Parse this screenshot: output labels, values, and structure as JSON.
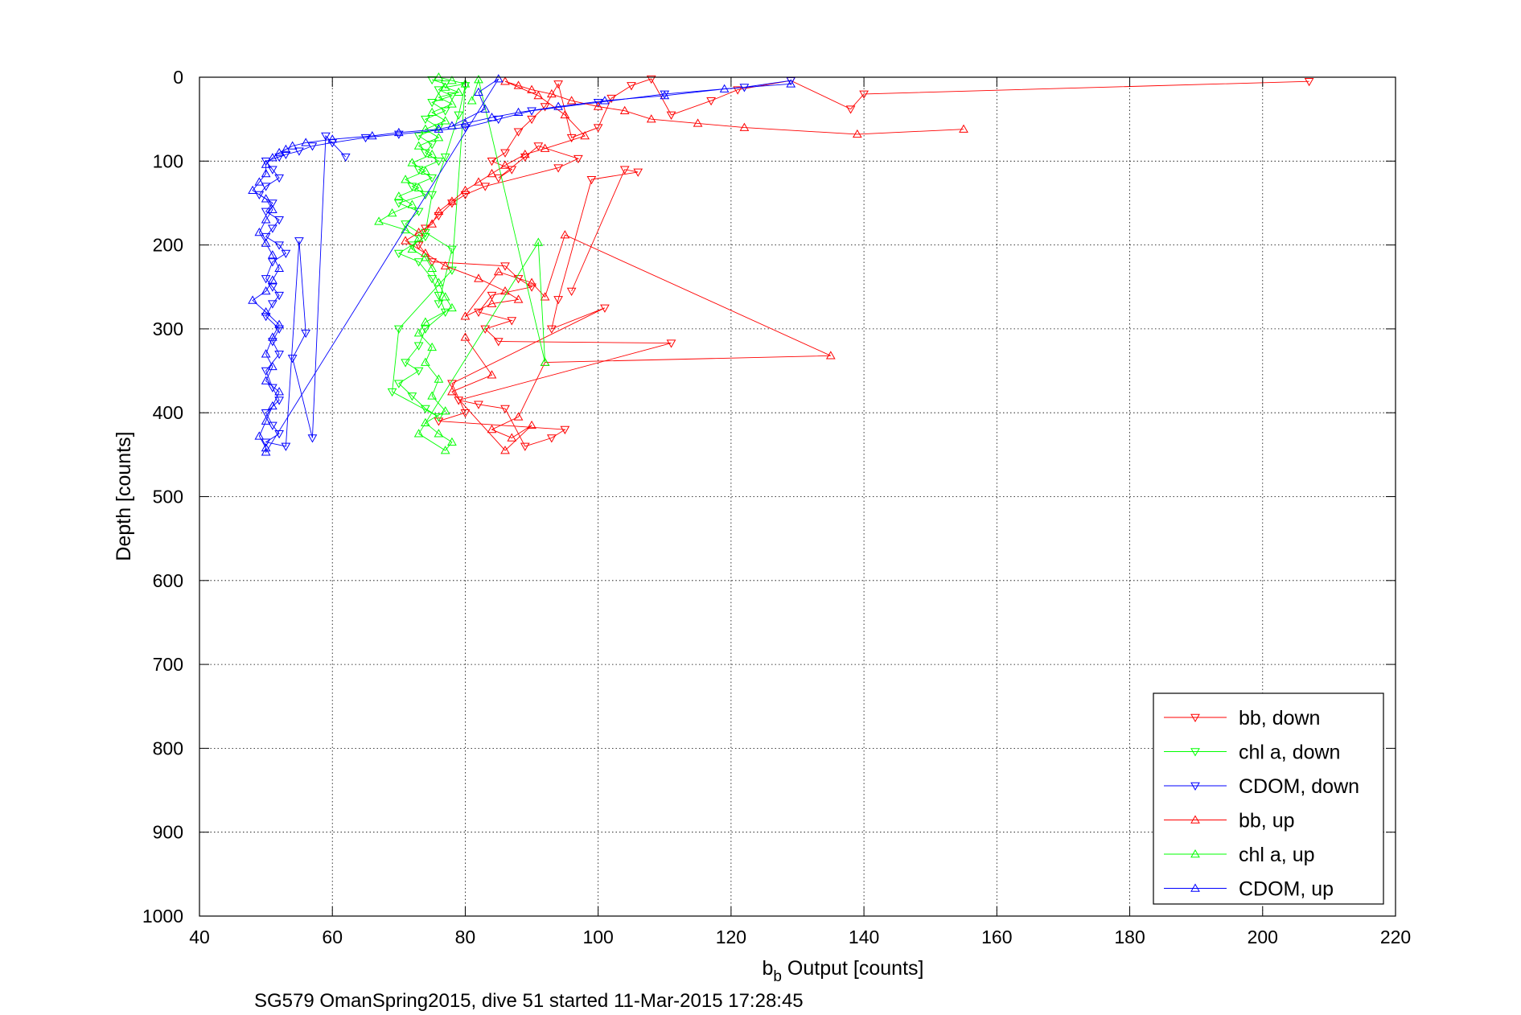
{
  "chart_data": {
    "type": "scatter",
    "caption": "SG579 OmanSpring2015, dive 51 started 11-Mar-2015 17:28:45",
    "xlabel_main": "b",
    "xlabel_sub": "b",
    "xlabel_rest": " Output [counts]",
    "ylabel": "Depth [counts]",
    "xlim": [
      40,
      220
    ],
    "ylim": [
      0,
      1000
    ],
    "y_reversed": true,
    "grid": true,
    "legend_position": "lower-right",
    "x_ticks": [
      40,
      60,
      80,
      100,
      120,
      140,
      160,
      180,
      200,
      220
    ],
    "y_ticks": [
      0,
      100,
      200,
      300,
      400,
      500,
      600,
      700,
      800,
      900,
      1000
    ],
    "colors": {
      "bb": "#ff0000",
      "chl": "#00ff00",
      "cdom": "#0000ff"
    },
    "series": [
      {
        "name": "bb, down",
        "color": "#ff0000",
        "marker": "triangle-down",
        "points": [
          [
            207,
            5
          ],
          [
            140,
            20
          ],
          [
            138,
            38
          ],
          [
            129,
            4
          ],
          [
            121,
            15
          ],
          [
            117,
            28
          ],
          [
            111,
            45
          ],
          [
            108,
            2
          ],
          [
            105,
            10
          ],
          [
            102,
            25
          ],
          [
            100,
            60
          ],
          [
            96,
            72
          ],
          [
            94,
            8
          ],
          [
            92,
            35
          ],
          [
            90,
            50
          ],
          [
            88,
            65
          ],
          [
            86,
            90
          ],
          [
            84,
            100
          ],
          [
            87,
            110
          ],
          [
            85,
            120
          ],
          [
            89,
            95
          ],
          [
            91,
            82
          ],
          [
            97,
            97
          ],
          [
            94,
            108
          ],
          [
            83,
            130
          ],
          [
            80,
            140
          ],
          [
            78,
            150
          ],
          [
            76,
            165
          ],
          [
            74,
            180
          ],
          [
            73,
            200
          ],
          [
            75,
            220
          ],
          [
            86,
            225
          ],
          [
            88,
            240
          ],
          [
            90,
            250
          ],
          [
            84,
            260
          ],
          [
            82,
            280
          ],
          [
            87,
            290
          ],
          [
            83,
            300
          ],
          [
            85,
            315
          ],
          [
            111,
            317
          ],
          [
            79,
            385
          ],
          [
            82,
            390
          ],
          [
            86,
            395
          ],
          [
            89,
            440
          ],
          [
            93,
            430
          ],
          [
            95,
            420
          ],
          [
            76,
            410
          ],
          [
            80,
            400
          ],
          [
            78,
            365
          ],
          [
            101,
            275
          ],
          [
            93,
            300
          ],
          [
            94,
            265
          ],
          [
            99,
            122
          ],
          [
            106,
            113
          ],
          [
            104,
            110
          ],
          [
            96,
            255
          ]
        ]
      },
      {
        "name": "chl a, down",
        "color": "#00ff00",
        "marker": "triangle-down",
        "points": [
          [
            75,
            3
          ],
          [
            77,
            8
          ],
          [
            76,
            15
          ],
          [
            78,
            22
          ],
          [
            75,
            30
          ],
          [
            77,
            40
          ],
          [
            74,
            50
          ],
          [
            76,
            60
          ],
          [
            73,
            70
          ],
          [
            75,
            80
          ],
          [
            74,
            90
          ],
          [
            76,
            100
          ],
          [
            73,
            110
          ],
          [
            75,
            120
          ],
          [
            72,
            130
          ],
          [
            74,
            140
          ],
          [
            70,
            150
          ],
          [
            73,
            160
          ],
          [
            71,
            175
          ],
          [
            74,
            190
          ],
          [
            72,
            200
          ],
          [
            70,
            210
          ],
          [
            73,
            220
          ],
          [
            75,
            240
          ],
          [
            76,
            260
          ],
          [
            77,
            280
          ],
          [
            74,
            300
          ],
          [
            73,
            320
          ],
          [
            71,
            340
          ],
          [
            73,
            350
          ],
          [
            70,
            365
          ],
          [
            72,
            380
          ],
          [
            74,
            395
          ],
          [
            76,
            405
          ],
          [
            69,
            375
          ],
          [
            70,
            300
          ],
          [
            78,
            230
          ],
          [
            80,
            10
          ],
          [
            79,
            45
          ],
          [
            77,
            95
          ],
          [
            75,
            140
          ],
          [
            74,
            185
          ],
          [
            78,
            205
          ],
          [
            76,
            270
          ]
        ]
      },
      {
        "name": "CDOM, down",
        "color": "#0000ff",
        "marker": "triangle-down",
        "points": [
          [
            129,
            4
          ],
          [
            122,
            12
          ],
          [
            110,
            20
          ],
          [
            100,
            30
          ],
          [
            90,
            40
          ],
          [
            85,
            50
          ],
          [
            80,
            60
          ],
          [
            70,
            68
          ],
          [
            65,
            72
          ],
          [
            60,
            78
          ],
          [
            57,
            82
          ],
          [
            55,
            88
          ],
          [
            53,
            92
          ],
          [
            52,
            95
          ],
          [
            50,
            100
          ],
          [
            51,
            110
          ],
          [
            52,
            120
          ],
          [
            50,
            130
          ],
          [
            49,
            140
          ],
          [
            51,
            150
          ],
          [
            50,
            160
          ],
          [
            52,
            170
          ],
          [
            51,
            180
          ],
          [
            50,
            190
          ],
          [
            52,
            200
          ],
          [
            53,
            210
          ],
          [
            51,
            220
          ],
          [
            50,
            240
          ],
          [
            51,
            250
          ],
          [
            52,
            260
          ],
          [
            51,
            270
          ],
          [
            50,
            285
          ],
          [
            52,
            300
          ],
          [
            51,
            315
          ],
          [
            52,
            330
          ],
          [
            50,
            350
          ],
          [
            51,
            370
          ],
          [
            52,
            385
          ],
          [
            50,
            400
          ],
          [
            51,
            415
          ],
          [
            52,
            425
          ],
          [
            50,
            435
          ],
          [
            53,
            440
          ],
          [
            55,
            195
          ],
          [
            56,
            305
          ],
          [
            54,
            335
          ],
          [
            57,
            430
          ],
          [
            59,
            70
          ],
          [
            62,
            95
          ]
        ]
      },
      {
        "name": "bb, up",
        "color": "#ff0000",
        "marker": "triangle-up",
        "points": [
          [
            155,
            62
          ],
          [
            139,
            68
          ],
          [
            122,
            60
          ],
          [
            115,
            55
          ],
          [
            108,
            50
          ],
          [
            104,
            40
          ],
          [
            100,
            35
          ],
          [
            96,
            28
          ],
          [
            93,
            20
          ],
          [
            90,
            15
          ],
          [
            88,
            10
          ],
          [
            86,
            5
          ],
          [
            91,
            22
          ],
          [
            95,
            45
          ],
          [
            98,
            70
          ],
          [
            92,
            85
          ],
          [
            89,
            92
          ],
          [
            86,
            105
          ],
          [
            84,
            115
          ],
          [
            82,
            125
          ],
          [
            80,
            135
          ],
          [
            78,
            148
          ],
          [
            76,
            160
          ],
          [
            75,
            175
          ],
          [
            73,
            185
          ],
          [
            71,
            195
          ],
          [
            74,
            210
          ],
          [
            77,
            225
          ],
          [
            82,
            240
          ],
          [
            86,
            255
          ],
          [
            88,
            265
          ],
          [
            84,
            270
          ],
          [
            80,
            285
          ],
          [
            85,
            232
          ],
          [
            90,
            245
          ],
          [
            92,
            262
          ],
          [
            95,
            188
          ],
          [
            135,
            332
          ],
          [
            92,
            340
          ],
          [
            88,
            405
          ],
          [
            84,
            420
          ],
          [
            87,
            430
          ],
          [
            90,
            415
          ],
          [
            86,
            445
          ],
          [
            78,
            375
          ],
          [
            84,
            355
          ],
          [
            80,
            310
          ]
        ]
      },
      {
        "name": "chl a, up",
        "color": "#00ff00",
        "marker": "triangle-up",
        "points": [
          [
            76,
            0
          ],
          [
            78,
            4
          ],
          [
            80,
            8
          ],
          [
            77,
            12
          ],
          [
            79,
            18
          ],
          [
            76,
            24
          ],
          [
            78,
            32
          ],
          [
            75,
            42
          ],
          [
            77,
            52
          ],
          [
            74,
            62
          ],
          [
            76,
            72
          ],
          [
            73,
            82
          ],
          [
            75,
            92
          ],
          [
            72,
            102
          ],
          [
            74,
            112
          ],
          [
            71,
            122
          ],
          [
            73,
            132
          ],
          [
            70,
            142
          ],
          [
            72,
            152
          ],
          [
            69,
            162
          ],
          [
            67,
            172
          ],
          [
            71,
            182
          ],
          [
            73,
            192
          ],
          [
            72,
            205
          ],
          [
            74,
            215
          ],
          [
            75,
            228
          ],
          [
            76,
            245
          ],
          [
            77,
            262
          ],
          [
            78,
            275
          ],
          [
            74,
            292
          ],
          [
            73,
            305
          ],
          [
            75,
            322
          ],
          [
            74,
            340
          ],
          [
            76,
            360
          ],
          [
            75,
            380
          ],
          [
            77,
            398
          ],
          [
            74,
            412
          ],
          [
            76,
            425
          ],
          [
            78,
            435
          ],
          [
            77,
            445
          ],
          [
            73,
            425
          ],
          [
            91,
            197
          ],
          [
            92,
            340
          ],
          [
            82,
            3
          ],
          [
            81,
            28
          ]
        ]
      },
      {
        "name": "CDOM, up",
        "color": "#0000ff",
        "marker": "triangle-up",
        "points": [
          [
            129,
            8
          ],
          [
            119,
            14
          ],
          [
            110,
            22
          ],
          [
            101,
            28
          ],
          [
            94,
            35
          ],
          [
            88,
            42
          ],
          [
            84,
            48
          ],
          [
            80,
            55
          ],
          [
            76,
            62
          ],
          [
            70,
            66
          ],
          [
            66,
            70
          ],
          [
            60,
            74
          ],
          [
            56,
            78
          ],
          [
            54,
            82
          ],
          [
            53,
            86
          ],
          [
            52,
            90
          ],
          [
            51,
            96
          ],
          [
            50,
            104
          ],
          [
            50,
            115
          ],
          [
            49,
            125
          ],
          [
            48,
            135
          ],
          [
            50,
            145
          ],
          [
            51,
            158
          ],
          [
            50,
            170
          ],
          [
            49,
            185
          ],
          [
            50,
            198
          ],
          [
            51,
            212
          ],
          [
            52,
            228
          ],
          [
            51,
            242
          ],
          [
            50,
            255
          ],
          [
            48,
            266
          ],
          [
            50,
            280
          ],
          [
            52,
            295
          ],
          [
            51,
            310
          ],
          [
            50,
            330
          ],
          [
            51,
            345
          ],
          [
            50,
            362
          ],
          [
            52,
            375
          ],
          [
            51,
            392
          ],
          [
            50,
            410
          ],
          [
            49,
            428
          ],
          [
            50,
            442
          ],
          [
            50,
            447
          ],
          [
            85,
            2
          ],
          [
            82,
            18
          ],
          [
            83,
            38
          ],
          [
            78,
            58
          ]
        ]
      }
    ]
  }
}
